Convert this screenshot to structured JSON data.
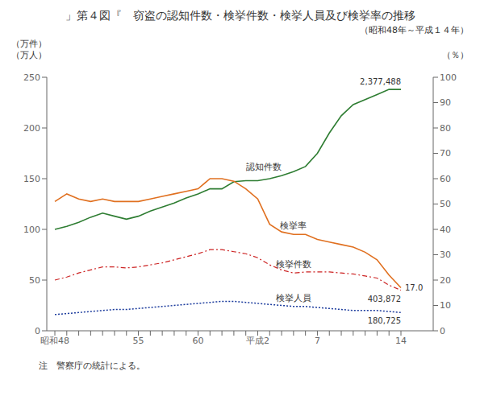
{
  "chart_data": {
    "type": "line",
    "title": "」第４図『　窃盗の認知件数・検挙件数・検挙人員及び検挙率の推移",
    "subtitle": "（昭和48年～平成１４年）",
    "note": "注　警察庁の統計による。",
    "ylabel": [
      "（万件）",
      "（万人）"
    ],
    "y2label": "（％）",
    "categories": [
      "昭和48",
      null,
      null,
      null,
      null,
      null,
      null,
      "55",
      null,
      null,
      null,
      null,
      "60",
      null,
      null,
      null,
      null,
      "平成2",
      null,
      null,
      null,
      null,
      "7",
      null,
      null,
      null,
      null,
      null,
      null,
      "14"
    ],
    "ylim": [
      0,
      250
    ],
    "yticks": [
      0,
      50,
      100,
      150,
      200,
      250
    ],
    "y2lim": [
      0,
      100
    ],
    "y2ticks": [
      0,
      10,
      20,
      30,
      40,
      50,
      60,
      70,
      80,
      90,
      100
    ],
    "grid": false,
    "series": [
      {
        "name": "認知件数",
        "color": "#2e7d32",
        "line_style": "solid",
        "values": [
          100,
          103,
          107,
          112,
          116,
          113,
          110,
          113,
          118,
          122,
          126,
          131,
          135,
          140,
          140,
          147,
          148,
          148,
          150,
          153,
          157,
          162,
          175,
          195,
          212,
          223,
          228,
          233,
          238,
          238
        ]
      },
      {
        "name": "検挙件数",
        "color": "#cc2222",
        "line_style": "dashdot",
        "values": [
          50,
          53,
          57,
          60,
          63,
          63,
          62,
          63,
          65,
          67,
          70,
          73,
          76,
          80,
          80,
          78,
          76,
          72,
          65,
          60,
          57,
          58,
          58,
          58,
          57,
          56,
          54,
          52,
          45,
          40
        ]
      },
      {
        "name": "検挙人員",
        "color": "#1a3a9c",
        "line_style": "dotted",
        "values": [
          16,
          17,
          18,
          19,
          20,
          21,
          21,
          22,
          23,
          24,
          25,
          26,
          27,
          28,
          29,
          29,
          28,
          27,
          26,
          25,
          24,
          24,
          23,
          22,
          21,
          20,
          20,
          20,
          19,
          18
        ]
      },
      {
        "name": "検挙率",
        "color": "#e07020",
        "line_style": "solid",
        "axis": "y2",
        "values": [
          51,
          54,
          52,
          51,
          52,
          51,
          51,
          51,
          52,
          53,
          54,
          55,
          56,
          60,
          60,
          59,
          56,
          52,
          42,
          39,
          38,
          38,
          36,
          35,
          34,
          33,
          31,
          28,
          22,
          17
        ]
      }
    ],
    "annotations": [
      {
        "text": "2,377,488",
        "series": "認知件数"
      },
      {
        "text": "403,872",
        "series": "検挙件数"
      },
      {
        "text": "180,725",
        "series": "検挙人員"
      },
      {
        "text": "17.0",
        "series": "検挙率"
      }
    ]
  }
}
